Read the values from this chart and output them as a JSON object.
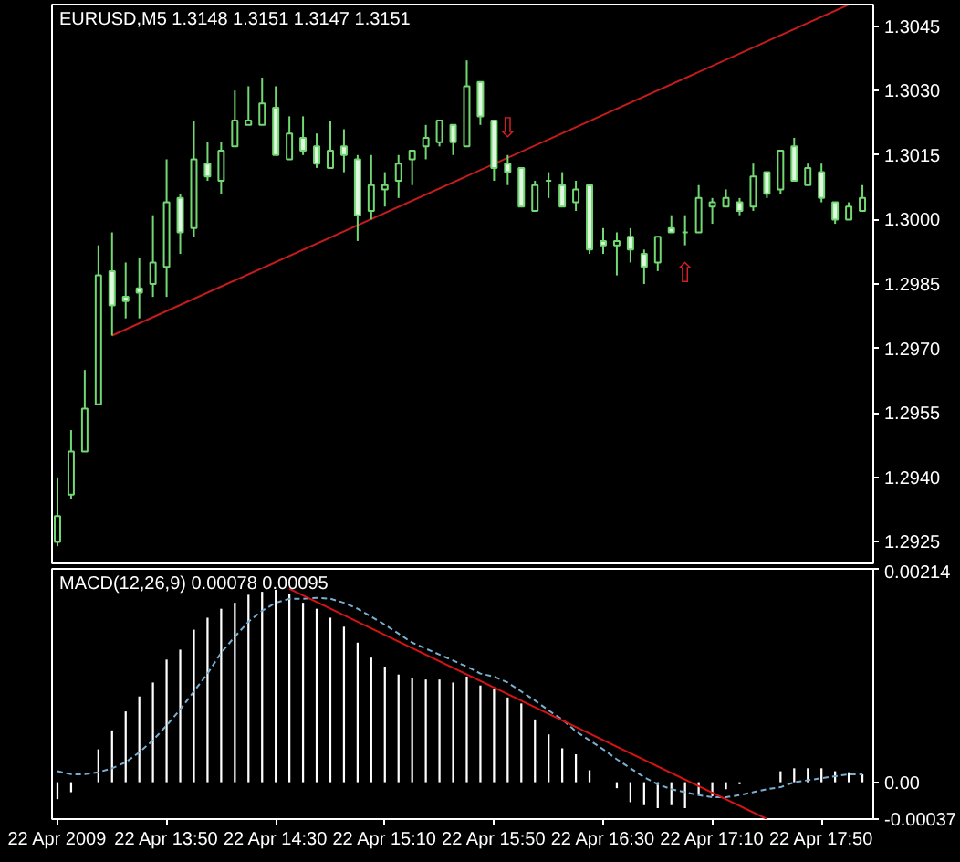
{
  "chart_data": [
    {
      "type": "candlestick",
      "title": "EURUSD,M5 1.3148 1.3151 1.3147 1.3151",
      "x": [
        "2009-04-22T13:10",
        "2009-04-22T13:15",
        "2009-04-22T13:20",
        "2009-04-22T13:25",
        "2009-04-22T13:30",
        "2009-04-22T13:35",
        "2009-04-22T13:40",
        "2009-04-22T13:45",
        "2009-04-22T13:50",
        "2009-04-22T13:55",
        "2009-04-22T14:00",
        "2009-04-22T14:05",
        "2009-04-22T14:10",
        "2009-04-22T14:15",
        "2009-04-22T14:20",
        "2009-04-22T14:25",
        "2009-04-22T14:30",
        "2009-04-22T14:35",
        "2009-04-22T14:40",
        "2009-04-22T14:45",
        "2009-04-22T14:50",
        "2009-04-22T14:55",
        "2009-04-22T15:00",
        "2009-04-22T15:05",
        "2009-04-22T15:10",
        "2009-04-22T15:15",
        "2009-04-22T15:20",
        "2009-04-22T15:25",
        "2009-04-22T15:30",
        "2009-04-22T15:35",
        "2009-04-22T15:40",
        "2009-04-22T15:45",
        "2009-04-22T15:50",
        "2009-04-22T15:55",
        "2009-04-22T16:00",
        "2009-04-22T16:05",
        "2009-04-22T16:10",
        "2009-04-22T16:15",
        "2009-04-22T16:20",
        "2009-04-22T16:25",
        "2009-04-22T16:30",
        "2009-04-22T16:35",
        "2009-04-22T16:40",
        "2009-04-22T16:45",
        "2009-04-22T16:50",
        "2009-04-22T16:55",
        "2009-04-22T17:00",
        "2009-04-22T17:05",
        "2009-04-22T17:10",
        "2009-04-22T17:15",
        "2009-04-22T17:20",
        "2009-04-22T17:25",
        "2009-04-22T17:30",
        "2009-04-22T17:35",
        "2009-04-22T17:40",
        "2009-04-22T17:45",
        "2009-04-22T17:50",
        "2009-04-22T17:55",
        "2009-04-22T18:00",
        "2009-04-22T18:05"
      ],
      "xlim": [
        "2009-04-22T13:08",
        "2009-04-22T18:09"
      ],
      "ylim": [
        1.292,
        1.305
      ],
      "yticks": [
        1.2925,
        {
          "value": 1.294,
          "label": "1.2940"
        },
        1.2955,
        {
          "value": 1.297,
          "label": "1.2970"
        },
        1.2985,
        {
          "value": 1.3,
          "label": "1.3000"
        },
        1.3015,
        {
          "value": 1.303,
          "label": "1.3030"
        },
        1.3045
      ],
      "tick_labels": "y",
      "series": [
        {
          "color": "#72d872",
          "ohlc": [
            [
              1.2925,
              1.294,
              1.2924,
              1.2931
            ],
            [
              1.2936,
              1.2951,
              1.2935,
              1.2946
            ],
            [
              1.2946,
              1.2965,
              1.2946,
              1.2956
            ],
            [
              1.2957,
              1.2994,
              1.2957,
              1.2987
            ],
            [
              1.2988,
              1.2997,
              1.2973,
              1.298
            ],
            [
              1.2982,
              1.299,
              1.2977,
              1.2981
            ],
            [
              1.2984,
              1.2991,
              1.2977,
              1.2983
            ],
            [
              1.2985,
              1.3001,
              1.2982,
              1.299
            ],
            [
              1.2989,
              1.3014,
              1.2982,
              1.3004
            ],
            [
              1.3005,
              1.3006,
              1.2992,
              1.2997
            ],
            [
              1.2998,
              1.3023,
              1.2996,
              1.3014
            ],
            [
              1.3013,
              1.3018,
              1.3009,
              1.301
            ],
            [
              1.3009,
              1.3018,
              1.3006,
              1.3016
            ],
            [
              1.3017,
              1.303,
              1.3017,
              1.3023
            ],
            [
              1.3022,
              1.3031,
              1.3022,
              1.3023
            ],
            [
              1.3022,
              1.3033,
              1.3022,
              1.3027
            ],
            [
              1.3026,
              1.3031,
              1.3015,
              1.3015
            ],
            [
              1.3014,
              1.3024,
              1.3014,
              1.302
            ],
            [
              1.3019,
              1.3024,
              1.3015,
              1.3016
            ],
            [
              1.3017,
              1.302,
              1.3012,
              1.3013
            ],
            [
              1.3012,
              1.3023,
              1.3012,
              1.3016
            ],
            [
              1.3017,
              1.3021,
              1.3011,
              1.3015
            ],
            [
              1.3014,
              1.3015,
              1.2995,
              1.3001
            ],
            [
              1.3002,
              1.3015,
              1.3,
              1.3008
            ],
            [
              1.3007,
              1.3011,
              1.3003,
              1.3008
            ],
            [
              1.3009,
              1.3015,
              1.3005,
              1.3013
            ],
            [
              1.3014,
              1.3016,
              1.3008,
              1.3016
            ],
            [
              1.3017,
              1.3022,
              1.3014,
              1.3019
            ],
            [
              1.3018,
              1.3023,
              1.3017,
              1.3023
            ],
            [
              1.3022,
              1.3022,
              1.3015,
              1.3018
            ],
            [
              1.3017,
              1.3037,
              1.3017,
              1.3031
            ],
            [
              1.3032,
              1.3032,
              1.3022,
              1.3024
            ],
            [
              1.3023,
              1.3023,
              1.3009,
              1.3012
            ],
            [
              1.3013,
              1.3015,
              1.3008,
              1.3011
            ],
            [
              1.3012,
              1.3012,
              1.3003,
              1.3003
            ],
            [
              1.3002,
              1.3009,
              1.3002,
              1.3008
            ],
            [
              1.3009,
              1.3011,
              1.3005,
              1.3009
            ],
            [
              1.3008,
              1.3011,
              1.3003,
              1.3003
            ],
            [
              1.3004,
              1.3009,
              1.3002,
              1.3007
            ],
            [
              1.3008,
              1.3008,
              1.2992,
              1.2993
            ],
            [
              1.2995,
              1.2998,
              1.2992,
              1.2994
            ],
            [
              1.2994,
              1.2997,
              1.2987,
              1.2995
            ],
            [
              1.2996,
              1.2998,
              1.299,
              1.2993
            ],
            [
              1.2992,
              1.2993,
              1.2985,
              1.2989
            ],
            [
              1.299,
              1.2996,
              1.2988,
              1.2996
            ],
            [
              1.2998,
              1.3001,
              1.2997,
              1.2997
            ],
            [
              1.2997,
              1.3001,
              1.2994,
              1.2997
            ],
            [
              1.2997,
              1.3008,
              1.2997,
              1.3005
            ],
            [
              1.3003,
              1.3005,
              1.2999,
              1.3004
            ],
            [
              1.3003,
              1.3007,
              1.3003,
              1.3005
            ],
            [
              1.3004,
              1.3005,
              1.3001,
              1.3002
            ],
            [
              1.3003,
              1.3013,
              1.3002,
              1.301
            ],
            [
              1.3011,
              1.3011,
              1.3005,
              1.3006
            ],
            [
              1.3007,
              1.3016,
              1.3006,
              1.3016
            ],
            [
              1.3017,
              1.3019,
              1.3009,
              1.3009
            ],
            [
              1.3008,
              1.3013,
              1.3008,
              1.3012
            ],
            [
              1.3011,
              1.3013,
              1.3004,
              1.3005
            ],
            [
              1.3004,
              1.3004,
              1.2999,
              1.3
            ],
            [
              1.3,
              1.3004,
              1.3,
              1.3003
            ],
            [
              1.3002,
              1.3008,
              1.3002,
              1.3005
            ]
          ]
        },
        {
          "type": "line",
          "color": "#c41c1c",
          "x": [
            "2009-04-22T13:30",
            "2009-04-22T18:00"
          ],
          "values": [
            1.2973,
            1.305
          ]
        }
      ],
      "annotations": [
        {
          "text": "⇩",
          "x": "2009-04-22T15:55",
          "y": 1.3015
        },
        {
          "text": "⇧",
          "x": "2009-04-22T17:00",
          "y": 1.2994
        }
      ]
    },
    {
      "type": "bar",
      "title": "MACD(12,26,9) 0.00078 0.00095",
      "x": [
        "2009-04-22T13:10",
        "2009-04-22T13:15",
        "2009-04-22T13:20",
        "2009-04-22T13:25",
        "2009-04-22T13:30",
        "2009-04-22T13:35",
        "2009-04-22T13:40",
        "2009-04-22T13:45",
        "2009-04-22T13:50",
        "2009-04-22T13:55",
        "2009-04-22T14:00",
        "2009-04-22T14:05",
        "2009-04-22T14:10",
        "2009-04-22T14:15",
        "2009-04-22T14:20",
        "2009-04-22T14:25",
        "2009-04-22T14:30",
        "2009-04-22T14:35",
        "2009-04-22T14:40",
        "2009-04-22T14:45",
        "2009-04-22T14:50",
        "2009-04-22T14:55",
        "2009-04-22T15:00",
        "2009-04-22T15:05",
        "2009-04-22T15:10",
        "2009-04-22T15:15",
        "2009-04-22T15:20",
        "2009-04-22T15:25",
        "2009-04-22T15:30",
        "2009-04-22T15:35",
        "2009-04-22T15:40",
        "2009-04-22T15:45",
        "2009-04-22T15:50",
        "2009-04-22T15:55",
        "2009-04-22T16:00",
        "2009-04-22T16:05",
        "2009-04-22T16:10",
        "2009-04-22T16:15",
        "2009-04-22T16:20",
        "2009-04-22T16:25",
        "2009-04-22T16:30",
        "2009-04-22T16:35",
        "2009-04-22T16:40",
        "2009-04-22T16:45",
        "2009-04-22T16:50",
        "2009-04-22T16:55",
        "2009-04-22T17:00",
        "2009-04-22T17:05",
        "2009-04-22T17:10",
        "2009-04-22T17:15",
        "2009-04-22T17:20",
        "2009-04-22T17:25",
        "2009-04-22T17:30",
        "2009-04-22T17:35",
        "2009-04-22T17:40",
        "2009-04-22T17:45",
        "2009-04-22T17:50",
        "2009-04-22T17:55",
        "2009-04-22T18:00",
        "2009-04-22T18:05"
      ],
      "xlim": [
        "2009-04-22T13:08",
        "2009-04-22T18:09"
      ],
      "xticks": [
        {
          "value": "2009-04-22T13:10",
          "label": "22 Apr 2009"
        },
        {
          "value": "2009-04-22T13:50",
          "label": "22 Apr 13:50"
        },
        {
          "value": "2009-04-22T14:30",
          "label": "22 Apr 14:30"
        },
        {
          "value": "2009-04-22T15:10",
          "label": "22 Apr 15:10"
        },
        {
          "value": "2009-04-22T15:50",
          "label": "22 Apr 15:50"
        },
        {
          "value": "2009-04-22T16:30",
          "label": "22 Apr 16:30"
        },
        {
          "value": "2009-04-22T17:10",
          "label": "22 Apr 17:10"
        },
        {
          "value": "2009-04-22T17:50",
          "label": "22 Apr 17:50"
        }
      ],
      "ylim": [
        -0.00037,
        0.00214
      ],
      "yticks": [
        -0.00037,
        {
          "value": 0,
          "label": "0.00"
        },
        0.00214
      ],
      "series": [
        {
          "color": "#ffffff",
          "values": [
            -0.00017,
            -0.0001,
            0,
            0.00033,
            0.00052,
            0.00071,
            0.00086,
            0.001,
            0.00123,
            0.00133,
            0.00153,
            0.00165,
            0.00174,
            0.0018,
            0.00188,
            0.00191,
            0.00193,
            0.00189,
            0.0018,
            0.00174,
            0.00165,
            0.00156,
            0.0014,
            0.00125,
            0.00116,
            0.00108,
            0.00105,
            0.00103,
            0.00103,
            0.001,
            0.00106,
            0.00097,
            0.00094,
            0.00085,
            0.00079,
            0.00063,
            0.00048,
            0.00034,
            0.00028,
            0.00012,
            0,
            -6e-05,
            -0.0002,
            -0.00023,
            -0.00026,
            -0.00023,
            -0.00026,
            -0.00012,
            -0.00014,
            -7e-05,
            -2e-05,
            0,
            0,
            0.00011,
            0.00014,
            0.00014,
            0.00014,
            0.00011,
            0.0001,
            8e-05
          ]
        },
        {
          "type": "line",
          "color": "#7aaed0",
          "line_style": "dashed",
          "values": [
            0.00011,
            8e-05,
            8e-05,
            0.0001,
            0.00014,
            0.0002,
            0.0003,
            0.00042,
            0.00057,
            0.00073,
            0.00091,
            0.00109,
            0.0013,
            0.00146,
            0.00161,
            0.00172,
            0.0018,
            0.00184,
            0.00184,
            0.00185,
            0.00184,
            0.0018,
            0.00174,
            0.00166,
            0.00158,
            0.00149,
            0.0014,
            0.00134,
            0.00128,
            0.00122,
            0.00116,
            0.00109,
            0.00106,
            0.001,
            0.00091,
            0.00082,
            0.00072,
            0.00063,
            0.00051,
            0.00042,
            0.00033,
            0.00023,
            0.00014,
            5e-05,
            -2e-05,
            -7e-05,
            -0.0001,
            -0.00013,
            -0.00015,
            -0.00015,
            -0.00013,
            -0.0001,
            -7e-05,
            -5e-05,
            0,
            2e-05,
            4e-05,
            6e-05,
            8e-05,
            8e-05
          ]
        },
        {
          "type": "line",
          "color": "#d41414",
          "x": [
            "2009-04-22T14:35",
            "2009-04-22T17:30"
          ],
          "values": [
            0.00194,
            -0.00037
          ]
        }
      ]
    }
  ]
}
